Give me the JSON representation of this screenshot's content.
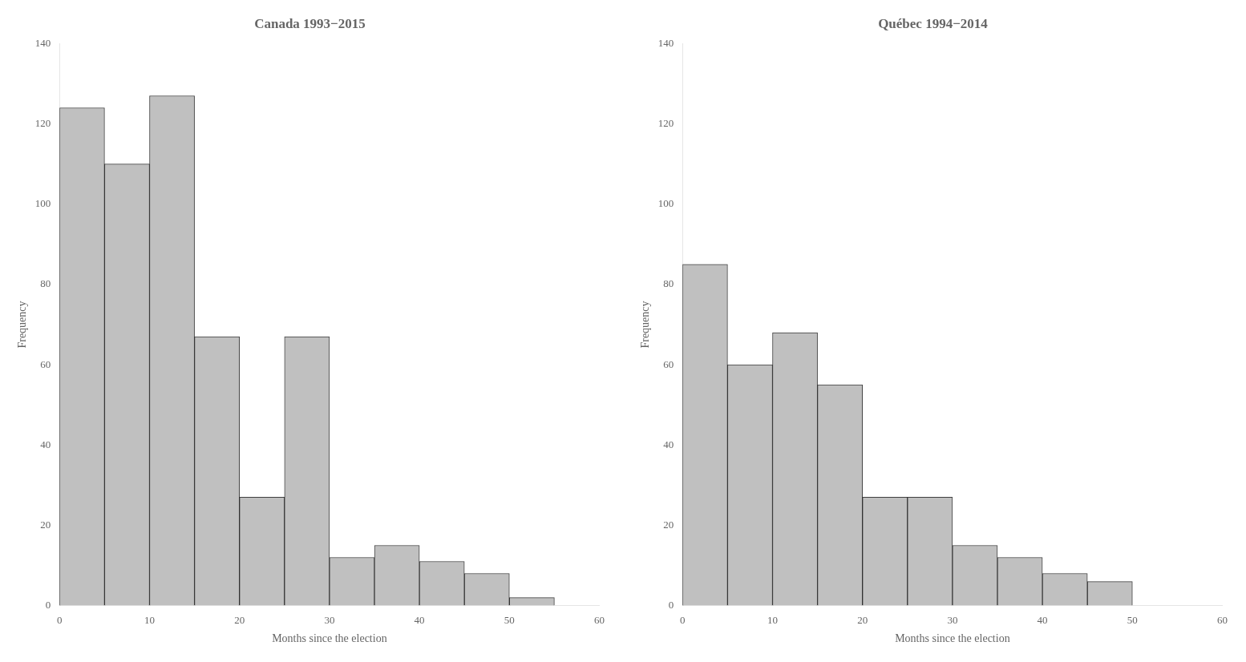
{
  "chart_data": [
    {
      "type": "histogram",
      "title": "Canada 1993−2015",
      "bins": [
        0,
        5,
        10,
        15,
        20,
        25,
        30,
        35,
        40,
        45,
        50,
        55
      ],
      "values": [
        124,
        110,
        127,
        67,
        27,
        67,
        12,
        15,
        11,
        8,
        2
      ],
      "color": "#c0c0c0",
      "xlim": [
        0,
        60
      ],
      "ylim": [
        0,
        140
      ],
      "xticks": [
        0,
        10,
        20,
        30,
        40,
        50,
        60
      ],
      "yticks": [
        0,
        20,
        40,
        60,
        80,
        100,
        120,
        140
      ],
      "xlabel": "Months since the election",
      "ylabel": "Frequency",
      "grid": false
    },
    {
      "type": "histogram",
      "title": "Québec 1994−2014",
      "bins": [
        0,
        5,
        10,
        15,
        20,
        25,
        30,
        35,
        40,
        45,
        50
      ],
      "values": [
        85,
        60,
        68,
        55,
        27,
        27,
        15,
        12,
        8,
        6
      ],
      "color": "#c0c0c0",
      "xlim": [
        0,
        60
      ],
      "ylim": [
        0,
        140
      ],
      "xticks": [
        0,
        10,
        20,
        30,
        40,
        50,
        60
      ],
      "yticks": [
        0,
        20,
        40,
        60,
        80,
        100,
        120,
        140
      ],
      "xlabel": "Months since the election",
      "ylabel": "Frequency",
      "grid": false
    }
  ]
}
